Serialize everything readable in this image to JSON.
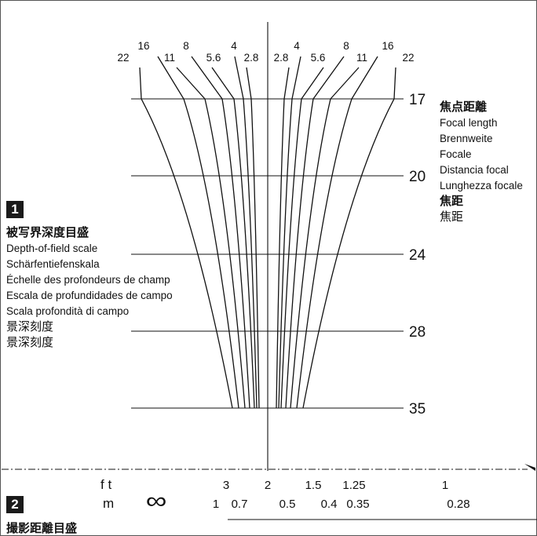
{
  "aperture_labels": {
    "left": [
      "22",
      "16",
      "11",
      "8",
      "5.6",
      "4",
      "2.8"
    ],
    "right": [
      "2.8",
      "4",
      "5.6",
      "8",
      "11",
      "16",
      "22"
    ]
  },
  "focal_lengths": [
    "17",
    "20",
    "24",
    "28",
    "35"
  ],
  "sections": {
    "one": {
      "number": "1",
      "labels": [
        "被写界深度目盛",
        "Depth-of-field scale",
        "Schärfentiefenskala",
        "Échelle des profondeurs de champ",
        "Escala de profundidades de campo",
        "Scala profondità di campo",
        "景深刻度",
        "景深刻度"
      ]
    },
    "two": {
      "number": "2",
      "label": "撮影距離目盛"
    }
  },
  "focal_length_labels": [
    "焦点距離",
    "Focal length",
    "Brennweite",
    "Focale",
    "Distancia focal",
    "Lunghezza focale",
    "焦距",
    "焦距"
  ],
  "distance_scale": {
    "ft": {
      "unit": "f t",
      "values": [
        "3",
        "2",
        "1.5",
        "1.25",
        "1"
      ]
    },
    "m": {
      "unit": "m",
      "infinity": "∞",
      "values": [
        "1",
        "0.7",
        "0.5",
        "0.4",
        "0.35",
        "0.28"
      ]
    }
  },
  "colors": {
    "line": "#111111",
    "badge": "#1a1a1a",
    "background": "#ffffff"
  }
}
